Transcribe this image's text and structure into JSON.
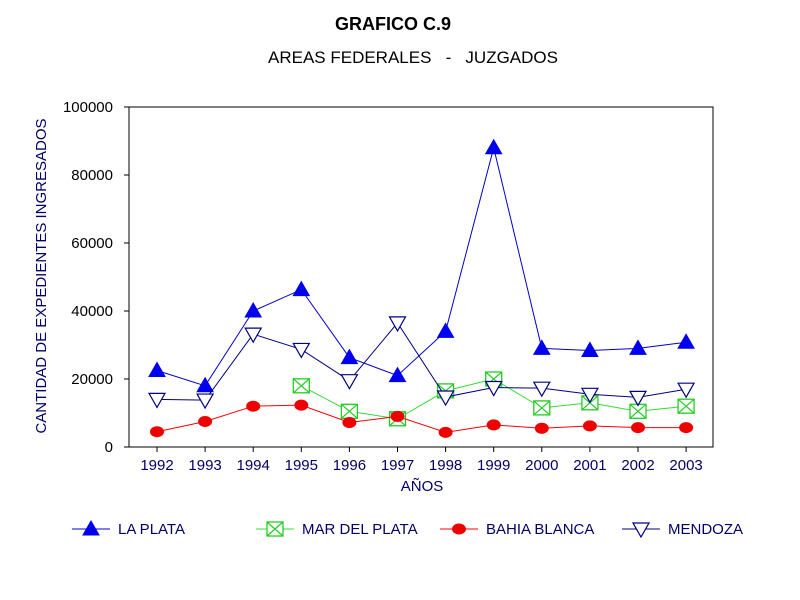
{
  "chart_data": {
    "type": "line",
    "title": "GRAFICO C.9",
    "subtitle": "AREAS FEDERALES   -   JUZGADOS",
    "xlabel": "AÑOS",
    "ylabel": "CANTIDAD DE EXPEDIENTES INGRESADOS",
    "ylim": [
      0,
      100000
    ],
    "yticks": [
      "0",
      "20000",
      "40000",
      "60000",
      "80000",
      "100000"
    ],
    "categories": [
      "1992",
      "1993",
      "1994",
      "1995",
      "1996",
      "1997",
      "1998",
      "1999",
      "2000",
      "2001",
      "2002",
      "2003"
    ],
    "grid": false,
    "legend_position": "bottom",
    "series": [
      {
        "name": "LA PLATA",
        "color": "#0000cc",
        "marker_color": "#0000ee",
        "marker": "triangle-up-filled",
        "values": [
          22500,
          18000,
          40000,
          46300,
          26300,
          21000,
          34000,
          88000,
          29000,
          28400,
          29000,
          30800
        ]
      },
      {
        "name": "MAR DEL PLATA",
        "color": "#33dd33",
        "marker_color": "#22cc22",
        "marker": "square-x",
        "values": [
          null,
          null,
          null,
          18000,
          10500,
          8300,
          16500,
          20000,
          11500,
          13000,
          10500,
          12000
        ]
      },
      {
        "name": "BAHIA BLANCA",
        "color": "#ff0000",
        "marker_color": "#ee0000",
        "marker": "circle-filled",
        "values": [
          4500,
          7500,
          12000,
          12300,
          7200,
          9000,
          4300,
          6500,
          5500,
          6200,
          5700,
          5700
        ]
      },
      {
        "name": "MENDOZA",
        "color": "#000080",
        "marker_color": "#000080",
        "marker": "triangle-down-open",
        "values": [
          14000,
          13800,
          33200,
          28700,
          19500,
          36500,
          14700,
          17500,
          17300,
          15500,
          14600,
          17000
        ]
      }
    ]
  }
}
